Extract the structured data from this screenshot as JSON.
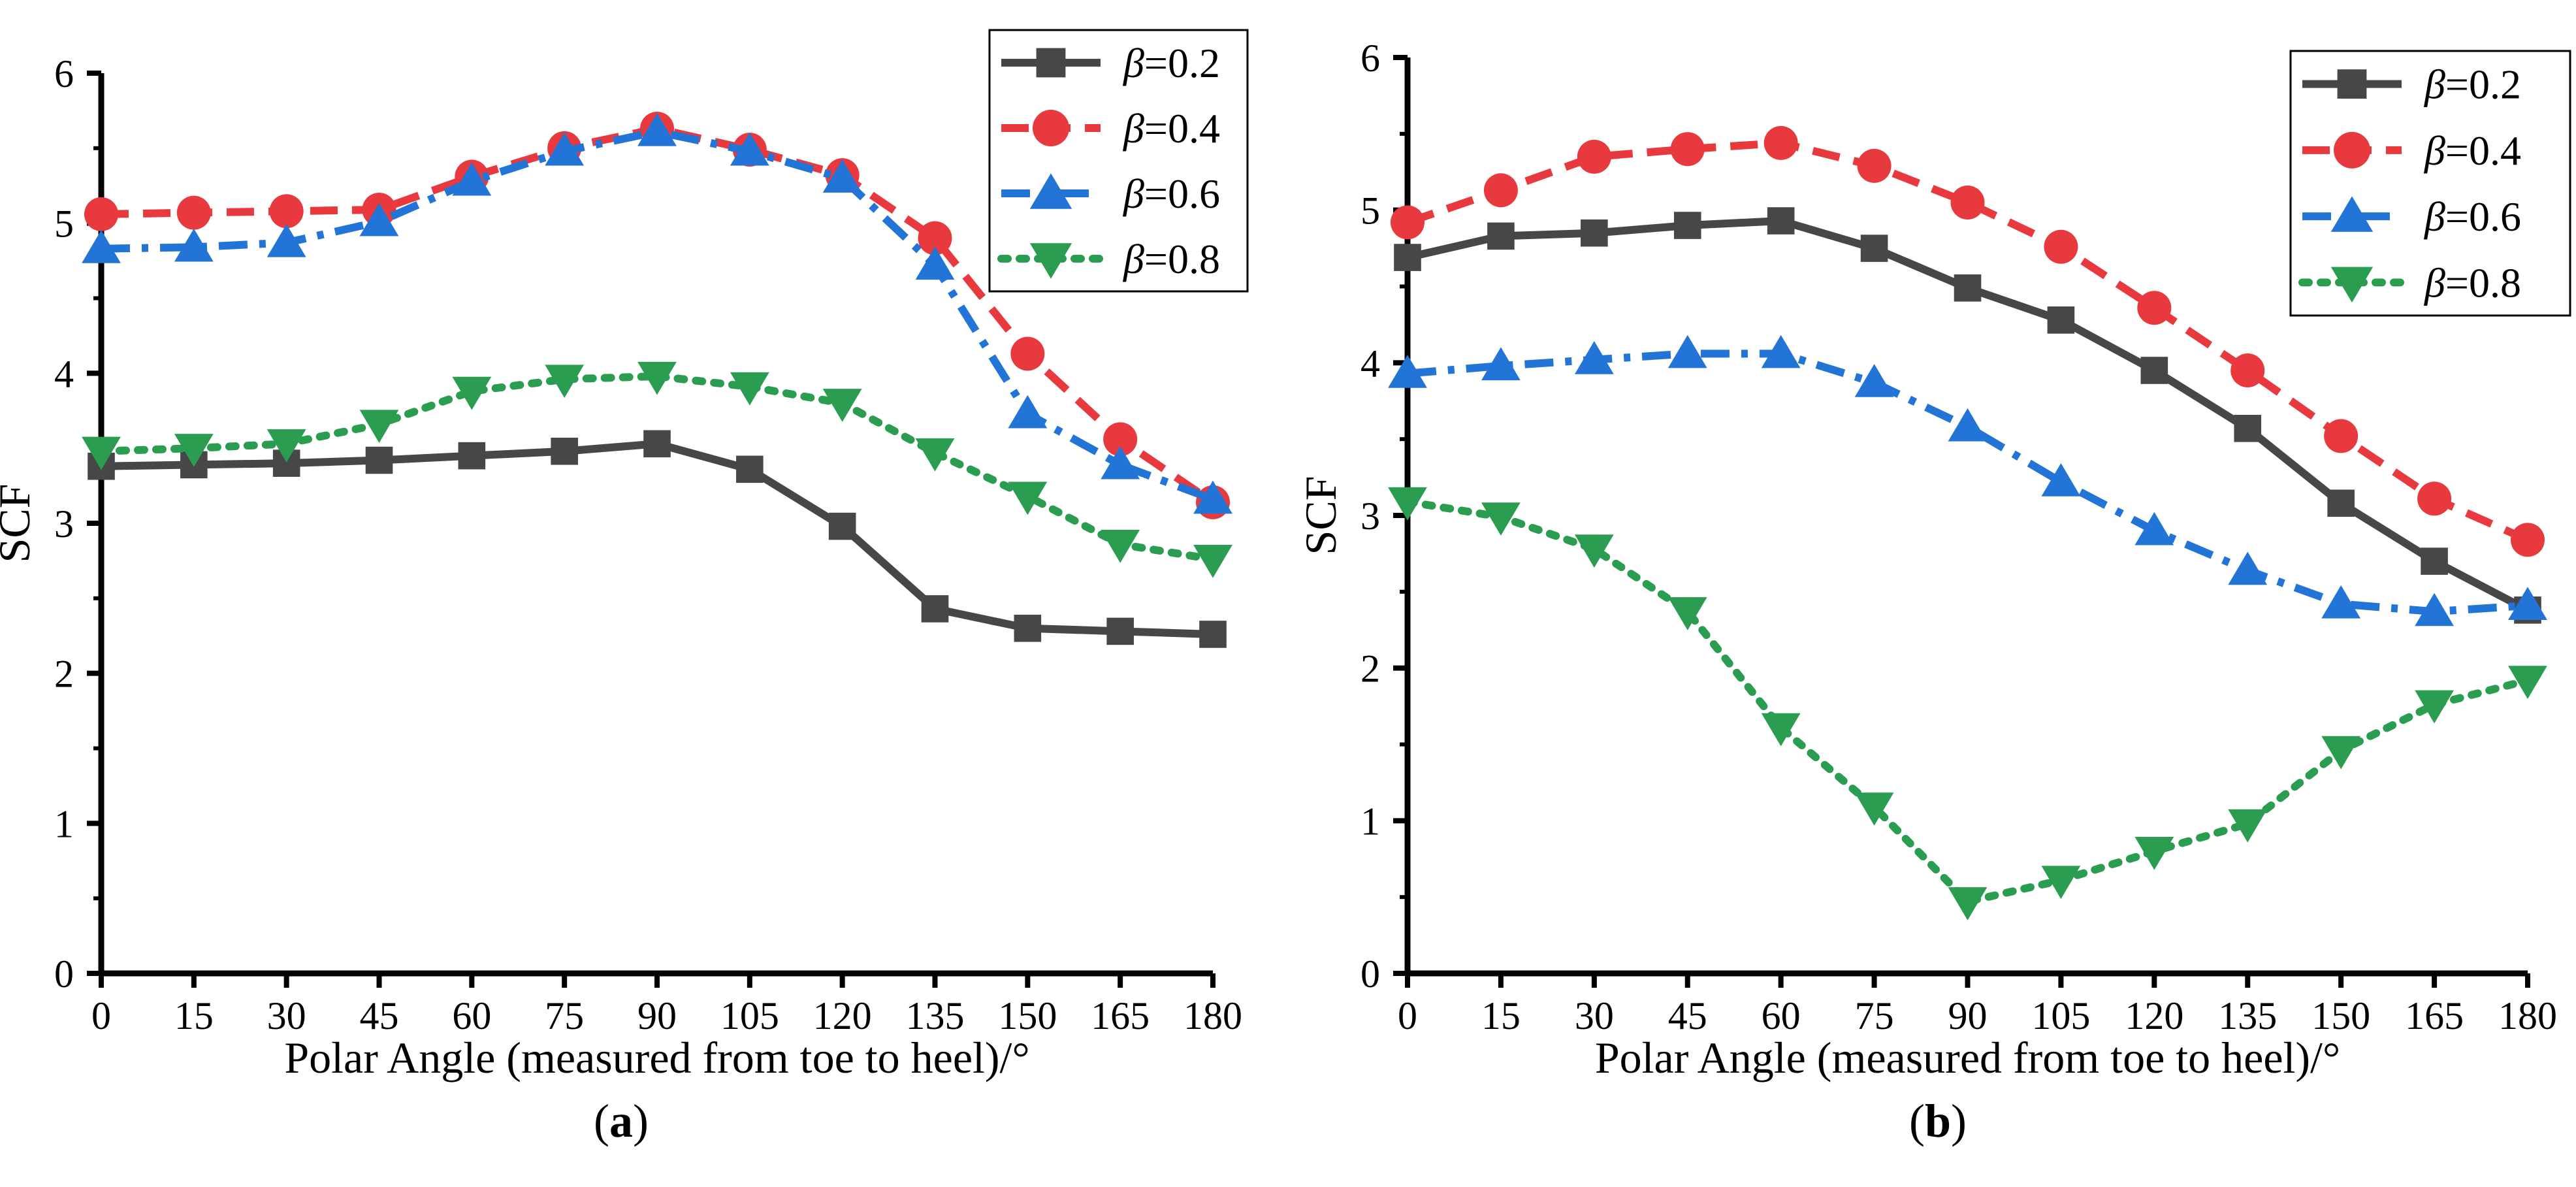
{
  "chart_data": [
    {
      "type": "line",
      "caption_prefix": "(",
      "caption_letter": "a",
      "caption_suffix": ")",
      "xlabel": "Polar Angle (measured from toe to heel)/°",
      "ylabel": "SCF",
      "xlim": [
        0,
        180
      ],
      "ylim": [
        0,
        6
      ],
      "xticks": [
        0,
        15,
        30,
        45,
        60,
        75,
        90,
        105,
        120,
        135,
        150,
        165,
        180
      ],
      "yticks": [
        0,
        1,
        2,
        3,
        4,
        5,
        6
      ],
      "legend_position": "top-right",
      "x": [
        0,
        15,
        30,
        45,
        60,
        75,
        90,
        105,
        120,
        135,
        150,
        165,
        180
      ],
      "series": [
        {
          "symbol": "β",
          "value_text": "=0.2",
          "color": "#474747",
          "marker": "square",
          "dash": "solid",
          "values": [
            3.38,
            3.39,
            3.4,
            3.42,
            3.45,
            3.48,
            3.53,
            3.36,
            2.98,
            2.43,
            2.3,
            2.28,
            2.26
          ]
        },
        {
          "symbol": "β",
          "value_text": "=0.4",
          "color": "#e8393e",
          "marker": "circle",
          "dash": "dash",
          "values": [
            5.06,
            5.07,
            5.08,
            5.09,
            5.31,
            5.5,
            5.63,
            5.49,
            5.32,
            4.9,
            4.13,
            3.56,
            3.14
          ]
        },
        {
          "symbol": "β",
          "value_text": "=0.6",
          "color": "#2274d6",
          "marker": "triangle-up",
          "dash": "dashdot",
          "values": [
            4.83,
            4.84,
            4.87,
            5.01,
            5.28,
            5.48,
            5.61,
            5.48,
            5.3,
            4.72,
            3.73,
            3.39,
            3.16
          ]
        },
        {
          "symbol": "β",
          "value_text": "=0.8",
          "color": "#2a9d51",
          "marker": "triangle-down",
          "dash": "dot",
          "values": [
            3.48,
            3.5,
            3.53,
            3.66,
            3.88,
            3.96,
            3.98,
            3.91,
            3.8,
            3.47,
            3.18,
            2.86,
            2.76
          ]
        }
      ]
    },
    {
      "type": "line",
      "caption_prefix": "(",
      "caption_letter": "b",
      "caption_suffix": ")",
      "xlabel": "Polar Angle (measured from toe to heel)/°",
      "ylabel": "SCF",
      "xlim": [
        0,
        180
      ],
      "ylim": [
        0,
        6
      ],
      "xticks": [
        0,
        15,
        30,
        45,
        60,
        75,
        90,
        105,
        120,
        135,
        150,
        165,
        180
      ],
      "yticks": [
        0,
        1,
        2,
        3,
        4,
        5,
        6
      ],
      "legend_position": "top-right",
      "x": [
        0,
        15,
        30,
        45,
        60,
        75,
        90,
        105,
        120,
        135,
        150,
        165,
        180
      ],
      "series": [
        {
          "symbol": "β",
          "value_text": "=0.2",
          "color": "#474747",
          "marker": "square",
          "dash": "solid",
          "values": [
            4.69,
            4.83,
            4.85,
            4.9,
            4.93,
            4.75,
            4.49,
            4.28,
            3.95,
            3.57,
            3.08,
            2.7,
            2.38
          ]
        },
        {
          "symbol": "β",
          "value_text": "=0.4",
          "color": "#e8393e",
          "marker": "circle",
          "dash": "dash",
          "values": [
            4.92,
            5.13,
            5.35,
            5.4,
            5.44,
            5.29,
            5.05,
            4.76,
            4.36,
            3.95,
            3.52,
            3.11,
            2.84
          ]
        },
        {
          "symbol": "β",
          "value_text": "=0.6",
          "color": "#2274d6",
          "marker": "triangle-up",
          "dash": "dashdot",
          "values": [
            3.93,
            3.98,
            4.02,
            4.06,
            4.06,
            3.87,
            3.58,
            3.22,
            2.9,
            2.64,
            2.42,
            2.37,
            2.41
          ]
        },
        {
          "symbol": "β",
          "value_text": "=0.8",
          "color": "#2a9d51",
          "marker": "triangle-down",
          "dash": "dot",
          "values": [
            3.09,
            2.99,
            2.78,
            2.37,
            1.61,
            1.09,
            0.47,
            0.61,
            0.8,
            0.98,
            1.46,
            1.76,
            1.92
          ]
        }
      ]
    }
  ]
}
